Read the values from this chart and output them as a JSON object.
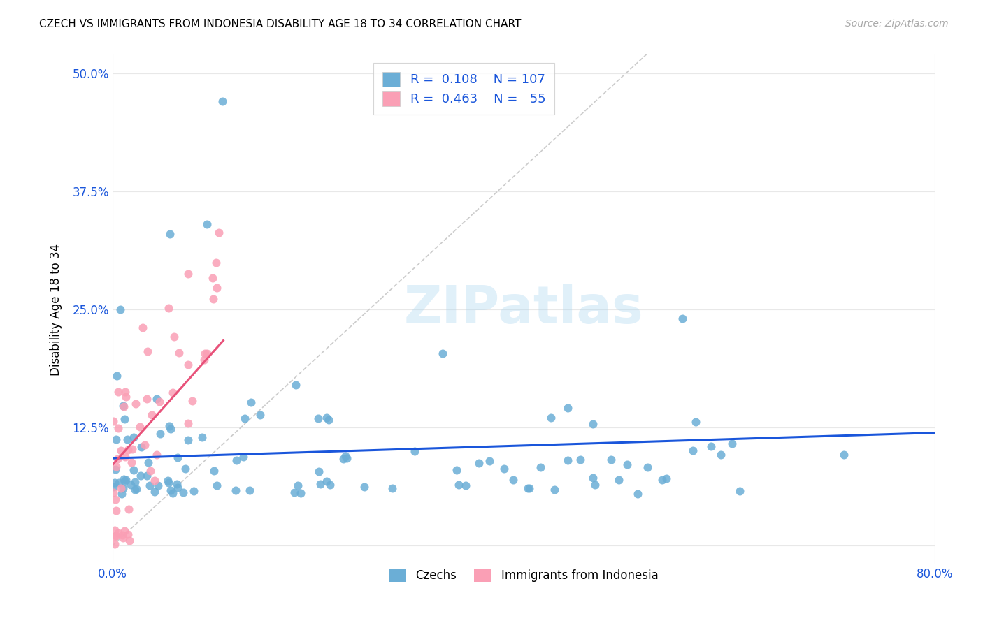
{
  "title": "CZECH VS IMMIGRANTS FROM INDONESIA DISABILITY AGE 18 TO 34 CORRELATION CHART",
  "source": "Source: ZipAtlas.com",
  "ylabel": "Disability Age 18 to 34",
  "xlim": [
    0.0,
    0.8
  ],
  "ylim": [
    -0.02,
    0.52
  ],
  "yticks": [
    0.0,
    0.125,
    0.25,
    0.375,
    0.5
  ],
  "yticklabels": [
    "",
    "12.5%",
    "25.0%",
    "37.5%",
    "50.0%"
  ],
  "blue_color": "#6baed6",
  "pink_color": "#fa9fb5",
  "line_blue": "#1a56db",
  "line_pink": "#e8527a",
  "watermark": "ZIPatlas",
  "r_czech": 0.108,
  "n_czech": 107,
  "r_indo": 0.463,
  "n_indo": 55
}
